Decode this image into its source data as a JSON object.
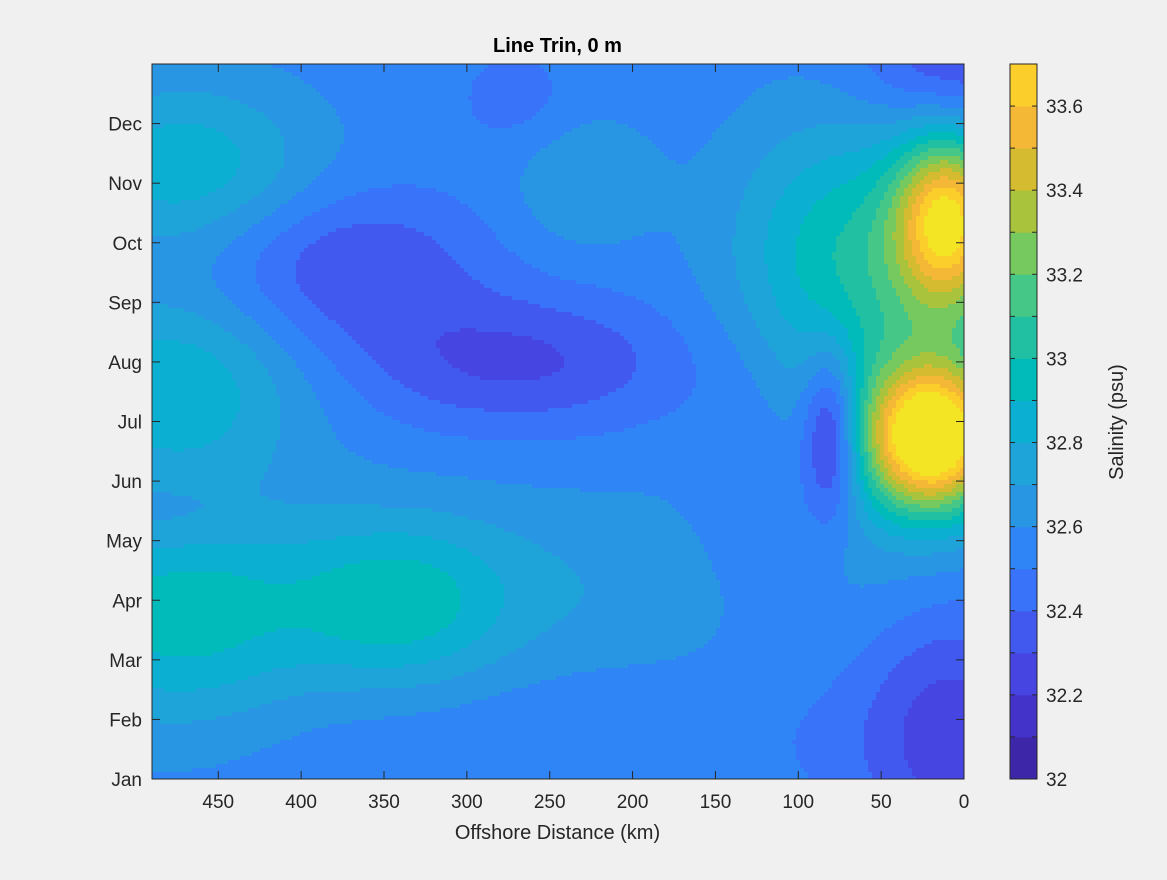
{
  "chart_data": {
    "type": "heatmap",
    "subtype": "filled-contour",
    "title": "Line Trin, 0 m",
    "xlabel": "Offshore Distance (km)",
    "ylabel": "",
    "x_reversed": true,
    "xlim": [
      490,
      0
    ],
    "x_ticks": [
      450,
      400,
      350,
      300,
      250,
      200,
      150,
      100,
      50,
      0
    ],
    "y_ticks": [
      "Jan",
      "Feb",
      "Mar",
      "Apr",
      "May",
      "Jun",
      "Jul",
      "Aug",
      "Sep",
      "Oct",
      "Nov",
      "Dec"
    ],
    "y_tick_values": [
      1,
      2,
      3,
      4,
      5,
      6,
      7,
      8,
      9,
      10,
      11,
      12
    ],
    "ylim": [
      1,
      13
    ],
    "colorbar": {
      "label": "Salinity (psu)",
      "range": [
        32,
        33.7
      ],
      "ticks": [
        32,
        32.2,
        32.4,
        32.6,
        32.8,
        33,
        33.2,
        33.4,
        33.6
      ],
      "levels": [
        32.0,
        32.1,
        32.2,
        32.3,
        32.4,
        32.5,
        32.6,
        32.7,
        32.8,
        32.9,
        33.0,
        33.1,
        33.2,
        33.3,
        33.4,
        33.5,
        33.6,
        33.7
      ],
      "colormap": "parula",
      "colors": [
        "#3e26a8",
        "#4433c9",
        "#4745e2",
        "#4259f0",
        "#3873fa",
        "#2f85f5",
        "#2996e4",
        "#1fa4d9",
        "#0aafd2",
        "#00bbb9",
        "#21c0a2",
        "#45c887",
        "#75c95e",
        "#a9c33c",
        "#d4bb2f",
        "#f5b836",
        "#fcce2c",
        "#f4e524"
      ]
    },
    "background_value": 32.55,
    "features": [
      {
        "x": 20,
        "y": 6.7,
        "sx": 28,
        "sy": 0.85,
        "amp": 1.25
      },
      {
        "x": 10,
        "y": 10.4,
        "sx": 22,
        "sy": 1.0,
        "amp": 0.95
      },
      {
        "x": 25,
        "y": 8.6,
        "sx": 60,
        "sy": 2.2,
        "amp": 0.35
      },
      {
        "x": 80,
        "y": 10.0,
        "sx": 45,
        "sy": 1.5,
        "amp": 0.25
      },
      {
        "x": 80,
        "y": 6.8,
        "sx": 12,
        "sy": 1.0,
        "amp": -0.5
      },
      {
        "x": 8,
        "y": 1.8,
        "sx": 40,
        "sy": 1.6,
        "amp": -0.3
      },
      {
        "x": 5,
        "y": 13.0,
        "sx": 40,
        "sy": 0.9,
        "amp": -0.3
      },
      {
        "x": 370,
        "y": 9.6,
        "sx": 55,
        "sy": 0.9,
        "amp": -0.25
      },
      {
        "x": 270,
        "y": 8.0,
        "sx": 70,
        "sy": 0.8,
        "amp": -0.27
      },
      {
        "x": 125,
        "y": 5.5,
        "sx": 25,
        "sy": 1.5,
        "amp": -0.12
      },
      {
        "x": 270,
        "y": 12.4,
        "sx": 25,
        "sy": 0.6,
        "amp": -0.1
      },
      {
        "x": 475,
        "y": 3.7,
        "sx": 60,
        "sy": 1.4,
        "amp": 0.37
      },
      {
        "x": 475,
        "y": 7.6,
        "sx": 55,
        "sy": 1.1,
        "amp": 0.33
      },
      {
        "x": 470,
        "y": 11.3,
        "sx": 55,
        "sy": 1.0,
        "amp": 0.32
      },
      {
        "x": 340,
        "y": 3.9,
        "sx": 45,
        "sy": 1.0,
        "amp": 0.3
      },
      {
        "x": 260,
        "y": 4.2,
        "sx": 140,
        "sy": 1.2,
        "amp": 0.14
      },
      {
        "x": 230,
        "y": 11.0,
        "sx": 30,
        "sy": 0.8,
        "amp": 0.15
      },
      {
        "x": 480,
        "y": 5.4,
        "sx": 40,
        "sy": 0.5,
        "amp": -0.1
      },
      {
        "x": 250,
        "y": 1.8,
        "sx": 200,
        "sy": 0.9,
        "amp": -0.05
      }
    ]
  }
}
